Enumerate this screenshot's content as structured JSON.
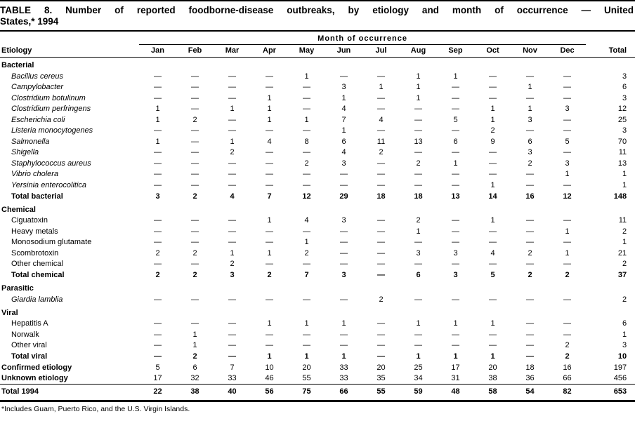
{
  "title": {
    "line1": "TABLE 8. Number of reported foodborne-disease outbreaks, by etiology and month of occurrence — United",
    "line2": "States,* 1994"
  },
  "footnote": "*Includes Guam, Puerto Rico, and the U.S. Virgin Islands.",
  "table": {
    "spanner": "Month of occurrence",
    "etiology_header": "Etiology",
    "months": [
      "Jan",
      "Feb",
      "Mar",
      "Apr",
      "May",
      "Jun",
      "Jul",
      "Aug",
      "Sep",
      "Oct",
      "Nov",
      "Dec"
    ],
    "total_header": "Total",
    "rows": [
      {
        "type": "section",
        "label": "Bacterial"
      },
      {
        "type": "item",
        "italic": true,
        "label": "Bacillus cereus",
        "values": [
          "—",
          "—",
          "—",
          "—",
          "1",
          "—",
          "—",
          "1",
          "1",
          "—",
          "—",
          "—"
        ],
        "total": "3"
      },
      {
        "type": "item",
        "italic": true,
        "label": "Campylobacter",
        "values": [
          "—",
          "—",
          "—",
          "—",
          "—",
          "3",
          "1",
          "1",
          "—",
          "—",
          "1",
          "—"
        ],
        "total": "6"
      },
      {
        "type": "item",
        "italic": true,
        "label": "Clostridium botulinum",
        "values": [
          "—",
          "—",
          "—",
          "1",
          "—",
          "1",
          "—",
          "1",
          "—",
          "—",
          "—",
          "—"
        ],
        "total": "3"
      },
      {
        "type": "item",
        "italic": true,
        "label": "Clostridium perfringens",
        "values": [
          "1",
          "—",
          "1",
          "1",
          "—",
          "4",
          "—",
          "—",
          "—",
          "1",
          "1",
          "3"
        ],
        "total": "12"
      },
      {
        "type": "item",
        "italic": true,
        "label": "Escherichia coli",
        "values": [
          "1",
          "2",
          "—",
          "1",
          "1",
          "7",
          "4",
          "—",
          "5",
          "1",
          "3",
          "—"
        ],
        "total": "25"
      },
      {
        "type": "item",
        "italic": true,
        "label": "Listeria monocytogenes",
        "values": [
          "—",
          "—",
          "—",
          "—",
          "—",
          "1",
          "—",
          "—",
          "—",
          "2",
          "—",
          "—"
        ],
        "total": "3"
      },
      {
        "type": "item",
        "italic": true,
        "label": "Salmonella",
        "values": [
          "1",
          "—",
          "1",
          "4",
          "8",
          "6",
          "11",
          "13",
          "6",
          "9",
          "6",
          "5"
        ],
        "total": "70"
      },
      {
        "type": "item",
        "italic": true,
        "label": "Shigella",
        "values": [
          "—",
          "—",
          "2",
          "—",
          "—",
          "4",
          "2",
          "—",
          "—",
          "—",
          "3",
          "—"
        ],
        "total": "11"
      },
      {
        "type": "item",
        "italic": true,
        "label": "Staphylococcus aureus",
        "values": [
          "—",
          "—",
          "—",
          "—",
          "2",
          "3",
          "—",
          "2",
          "1",
          "—",
          "2",
          "3"
        ],
        "total": "13"
      },
      {
        "type": "item",
        "italic": true,
        "label": "Vibrio cholera",
        "values": [
          "—",
          "—",
          "—",
          "—",
          "—",
          "—",
          "—",
          "—",
          "—",
          "—",
          "—",
          "1"
        ],
        "total": "1"
      },
      {
        "type": "item",
        "italic": true,
        "label": "Yersinia enterocolitica",
        "values": [
          "—",
          "—",
          "—",
          "—",
          "—",
          "—",
          "—",
          "—",
          "—",
          "1",
          "—",
          "—"
        ],
        "total": "1"
      },
      {
        "type": "subtotal",
        "label": "Total bacterial",
        "values": [
          "3",
          "2",
          "4",
          "7",
          "12",
          "29",
          "18",
          "18",
          "13",
          "14",
          "16",
          "12"
        ],
        "total": "148"
      },
      {
        "type": "section",
        "label": "Chemical"
      },
      {
        "type": "item",
        "italic": false,
        "label": "Ciguatoxin",
        "values": [
          "—",
          "—",
          "—",
          "1",
          "4",
          "3",
          "—",
          "2",
          "—",
          "1",
          "—",
          "—"
        ],
        "total": "11"
      },
      {
        "type": "item",
        "italic": false,
        "label": "Heavy metals",
        "values": [
          "—",
          "—",
          "—",
          "—",
          "—",
          "—",
          "—",
          "1",
          "—",
          "—",
          "—",
          "1"
        ],
        "total": "2"
      },
      {
        "type": "item",
        "italic": false,
        "label": "Monosodium glutamate",
        "values": [
          "—",
          "—",
          "—",
          "—",
          "1",
          "—",
          "—",
          "—",
          "—",
          "—",
          "—",
          "—"
        ],
        "total": "1"
      },
      {
        "type": "item",
        "italic": false,
        "label": "Scombrotoxin",
        "values": [
          "2",
          "2",
          "1",
          "1",
          "2",
          "—",
          "—",
          "3",
          "3",
          "4",
          "2",
          "1"
        ],
        "total": "21"
      },
      {
        "type": "item",
        "italic": false,
        "label": "Other chemical",
        "values": [
          "—",
          "—",
          "2",
          "—",
          "—",
          "—",
          "—",
          "—",
          "—",
          "—",
          "—",
          "—"
        ],
        "total": "2"
      },
      {
        "type": "subtotal",
        "label": "Total chemical",
        "values": [
          "2",
          "2",
          "3",
          "2",
          "7",
          "3",
          "—",
          "6",
          "3",
          "5",
          "2",
          "2"
        ],
        "total": "37"
      },
      {
        "type": "section",
        "label": "Parasitic"
      },
      {
        "type": "item",
        "italic": true,
        "label": "Giardia lamblia",
        "values": [
          "—",
          "—",
          "—",
          "—",
          "—",
          "—",
          "2",
          "—",
          "—",
          "—",
          "—",
          "—"
        ],
        "total": "2"
      },
      {
        "type": "section",
        "label": "Viral"
      },
      {
        "type": "item",
        "italic": false,
        "label": "Hepatitis A",
        "values": [
          "—",
          "—",
          "—",
          "1",
          "1",
          "1",
          "—",
          "1",
          "1",
          "1",
          "—",
          "—"
        ],
        "total": "6"
      },
      {
        "type": "item",
        "italic": false,
        "label": "Norwalk",
        "values": [
          "—",
          "1",
          "—",
          "—",
          "—",
          "—",
          "—",
          "—",
          "—",
          "—",
          "—",
          "—"
        ],
        "total": "1"
      },
      {
        "type": "item",
        "italic": false,
        "label": "Other viral",
        "values": [
          "—",
          "1",
          "—",
          "—",
          "—",
          "—",
          "—",
          "—",
          "—",
          "—",
          "—",
          "2"
        ],
        "total": "3"
      },
      {
        "type": "subtotal",
        "label": "Total viral",
        "values": [
          "—",
          "2",
          "—",
          "1",
          "1",
          "1",
          "—",
          "1",
          "1",
          "1",
          "—",
          "2"
        ],
        "total": "10"
      },
      {
        "type": "summary",
        "label": "Confirmed etiology",
        "values": [
          "5",
          "6",
          "7",
          "10",
          "20",
          "33",
          "20",
          "25",
          "17",
          "20",
          "18",
          "16"
        ],
        "total": "197"
      },
      {
        "type": "summary",
        "label": "Unknown etiology",
        "values": [
          "17",
          "32",
          "33",
          "46",
          "55",
          "33",
          "35",
          "34",
          "31",
          "38",
          "36",
          "66"
        ],
        "total": "456"
      },
      {
        "type": "grand",
        "label": "Total 1994",
        "values": [
          "22",
          "38",
          "40",
          "56",
          "75",
          "66",
          "55",
          "59",
          "48",
          "58",
          "54",
          "82"
        ],
        "total": "653"
      }
    ]
  }
}
